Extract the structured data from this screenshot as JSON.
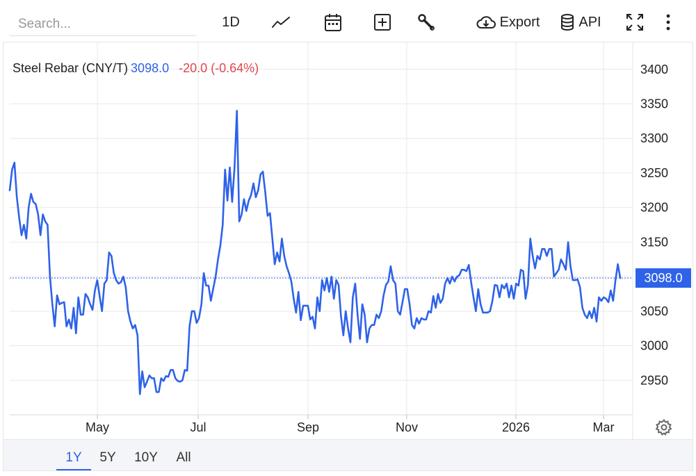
{
  "search": {
    "placeholder": "Search..."
  },
  "toolbar": {
    "interval_label": "1D",
    "export_label": "Export",
    "api_label": "API"
  },
  "legend": {
    "name": "Steel Rebar (CNY/T)",
    "price": "3098.0",
    "change": "-20.0 (-0.64%)"
  },
  "current_price_label": "3098.0",
  "ranges": [
    {
      "label": "1Y",
      "active": true
    },
    {
      "label": "5Y",
      "active": false
    },
    {
      "label": "10Y",
      "active": false
    },
    {
      "label": "All",
      "active": false
    }
  ],
  "colors": {
    "line": "#2e62e8",
    "down": "#e0474c",
    "grid": "#e9e9e9"
  },
  "chart_data": {
    "type": "line",
    "series": [
      {
        "name": "Steel Rebar (CNY/T)",
        "values": [
          3225,
          3255,
          3265,
          3215,
          3185,
          3160,
          3175,
          3155,
          3200,
          3220,
          3208,
          3205,
          3190,
          3160,
          3190,
          3180,
          3175,
          3100,
          3060,
          3028,
          3073,
          3060,
          3062,
          3063,
          3028,
          3038,
          3025,
          3055,
          3018,
          3070,
          3045,
          3045,
          3075,
          3070,
          3060,
          3052,
          3080,
          3095,
          3072,
          3050,
          3090,
          3095,
          3135,
          3130,
          3105,
          3095,
          3090,
          3092,
          3100,
          3085,
          3050,
          3035,
          3025,
          3030,
          3015,
          2930,
          2963,
          2940,
          2948,
          2957,
          2953,
          2953,
          2933,
          2933,
          2953,
          2949,
          2956,
          2955,
          2965,
          2965,
          2953,
          2949,
          2948,
          2950,
          2965,
          2964,
          3028,
          3050,
          3050,
          3033,
          3040,
          3060,
          3105,
          3087,
          3087,
          3065,
          3083,
          3100,
          3125,
          3145,
          3175,
          3255,
          3210,
          3258,
          3208,
          3258,
          3340,
          3180,
          3190,
          3212,
          3195,
          3210,
          3218,
          3235,
          3215,
          3225,
          3248,
          3252,
          3222,
          3188,
          3192,
          3155,
          3118,
          3135,
          3122,
          3155,
          3130,
          3115,
          3105,
          3093,
          3068,
          3048,
          3078,
          3037,
          3058,
          3058,
          3058,
          3038,
          3042,
          3025,
          3070,
          3050,
          3095,
          3080,
          3098,
          3078,
          3100,
          3068,
          3095,
          3088,
          3043,
          3015,
          3050,
          3025,
          3005,
          3070,
          3090,
          3045,
          3010,
          3060,
          3045,
          3005,
          3025,
          3030,
          3030,
          3045,
          3040,
          3050,
          3073,
          3088,
          3093,
          3115,
          3095,
          3090,
          3050,
          3045,
          3063,
          3082,
          3082,
          3060,
          3030,
          3025,
          3040,
          3032,
          3040,
          3038,
          3038,
          3050,
          3048,
          3072,
          3055,
          3075,
          3062,
          3068,
          3090,
          3098,
          3090,
          3100,
          3093,
          3100,
          3102,
          3110,
          3110,
          3108,
          3117,
          3092,
          3070,
          3050,
          3082,
          3060,
          3048,
          3048,
          3048,
          3050,
          3065,
          3088,
          3087,
          3070,
          3088,
          3083,
          3090,
          3070,
          3087,
          3068,
          3090,
          3087,
          3110,
          3108,
          3068,
          3088,
          3155,
          3130,
          3112,
          3130,
          3125,
          3140,
          3140,
          3130,
          3140,
          3140,
          3100,
          3105,
          3110,
          3125,
          3118,
          3110,
          3150,
          3115,
          3095,
          3095,
          3096,
          3085,
          3055,
          3045,
          3040,
          3050,
          3040,
          3055,
          3035,
          3070,
          3065,
          3070,
          3068,
          3063,
          3080,
          3065,
          3095,
          3118,
          3098
        ],
        "color": "#2e62e8"
      }
    ],
    "x_tick_labels": [
      "May",
      "Jul",
      "Sep",
      "Nov",
      "2026",
      "Mar"
    ],
    "y_ticks": [
      2950,
      3000,
      3050,
      3100,
      3150,
      3200,
      3250,
      3300,
      3350,
      3400
    ],
    "ylim": [
      2900,
      3440
    ],
    "last_value": 3098.0,
    "grid": true,
    "legend_position": "top-left"
  }
}
